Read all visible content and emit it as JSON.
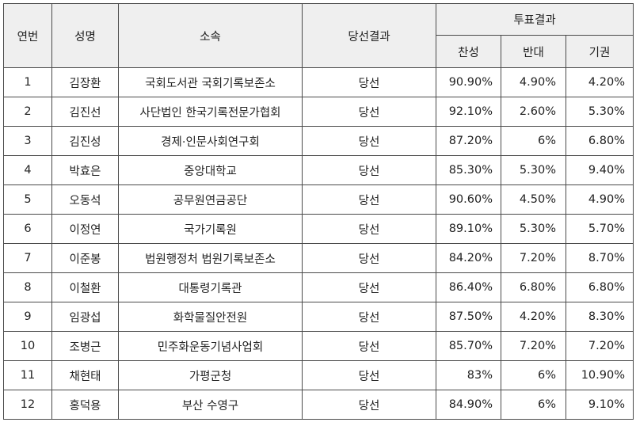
{
  "header": {
    "no": "연번",
    "name": "성명",
    "affiliation": "소속",
    "result": "당선결과",
    "vote_result": "투표결과",
    "for": "찬성",
    "against": "반대",
    "abstain": "기권"
  },
  "rows": [
    {
      "no": "1",
      "name": "김장환",
      "affiliation": "국회도서관 국회기록보존소",
      "result": "당선",
      "for": "90.90%",
      "against": "4.90%",
      "abstain": "4.20%"
    },
    {
      "no": "2",
      "name": "김진선",
      "affiliation": "사단법인 한국기록전문가협회",
      "result": "당선",
      "for": "92.10%",
      "against": "2.60%",
      "abstain": "5.30%"
    },
    {
      "no": "3",
      "name": "김진성",
      "affiliation": "경제·인문사회연구회",
      "result": "당선",
      "for": "87.20%",
      "against": "6%",
      "abstain": "6.80%"
    },
    {
      "no": "4",
      "name": "박효은",
      "affiliation": "중앙대학교",
      "result": "당선",
      "for": "85.30%",
      "against": "5.30%",
      "abstain": "9.40%"
    },
    {
      "no": "5",
      "name": "오동석",
      "affiliation": "공무원연금공단",
      "result": "당선",
      "for": "90.60%",
      "against": "4.50%",
      "abstain": "4.90%"
    },
    {
      "no": "6",
      "name": "이정연",
      "affiliation": "국가기록원",
      "result": "당선",
      "for": "89.10%",
      "against": "5.30%",
      "abstain": "5.70%"
    },
    {
      "no": "7",
      "name": "이준봉",
      "affiliation": "법원행정처 법원기록보존소",
      "result": "당선",
      "for": "84.20%",
      "against": "7.20%",
      "abstain": "8.70%"
    },
    {
      "no": "8",
      "name": "이철환",
      "affiliation": "대통령기록관",
      "result": "당선",
      "for": "86.40%",
      "against": "6.80%",
      "abstain": "6.80%"
    },
    {
      "no": "9",
      "name": "임광섭",
      "affiliation": "화학물질안전원",
      "result": "당선",
      "for": "87.50%",
      "against": "4.20%",
      "abstain": "8.30%"
    },
    {
      "no": "10",
      "name": "조병근",
      "affiliation": "민주화운동기념사업회",
      "result": "당선",
      "for": "85.70%",
      "against": "7.20%",
      "abstain": "7.20%"
    },
    {
      "no": "11",
      "name": "채현태",
      "affiliation": "가평군청",
      "result": "당선",
      "for": "83%",
      "against": "6%",
      "abstain": "10.90%"
    },
    {
      "no": "12",
      "name": "홍덕용",
      "affiliation": "부산 수영구",
      "result": "당선",
      "for": "84.90%",
      "against": "6%",
      "abstain": "9.10%"
    }
  ]
}
